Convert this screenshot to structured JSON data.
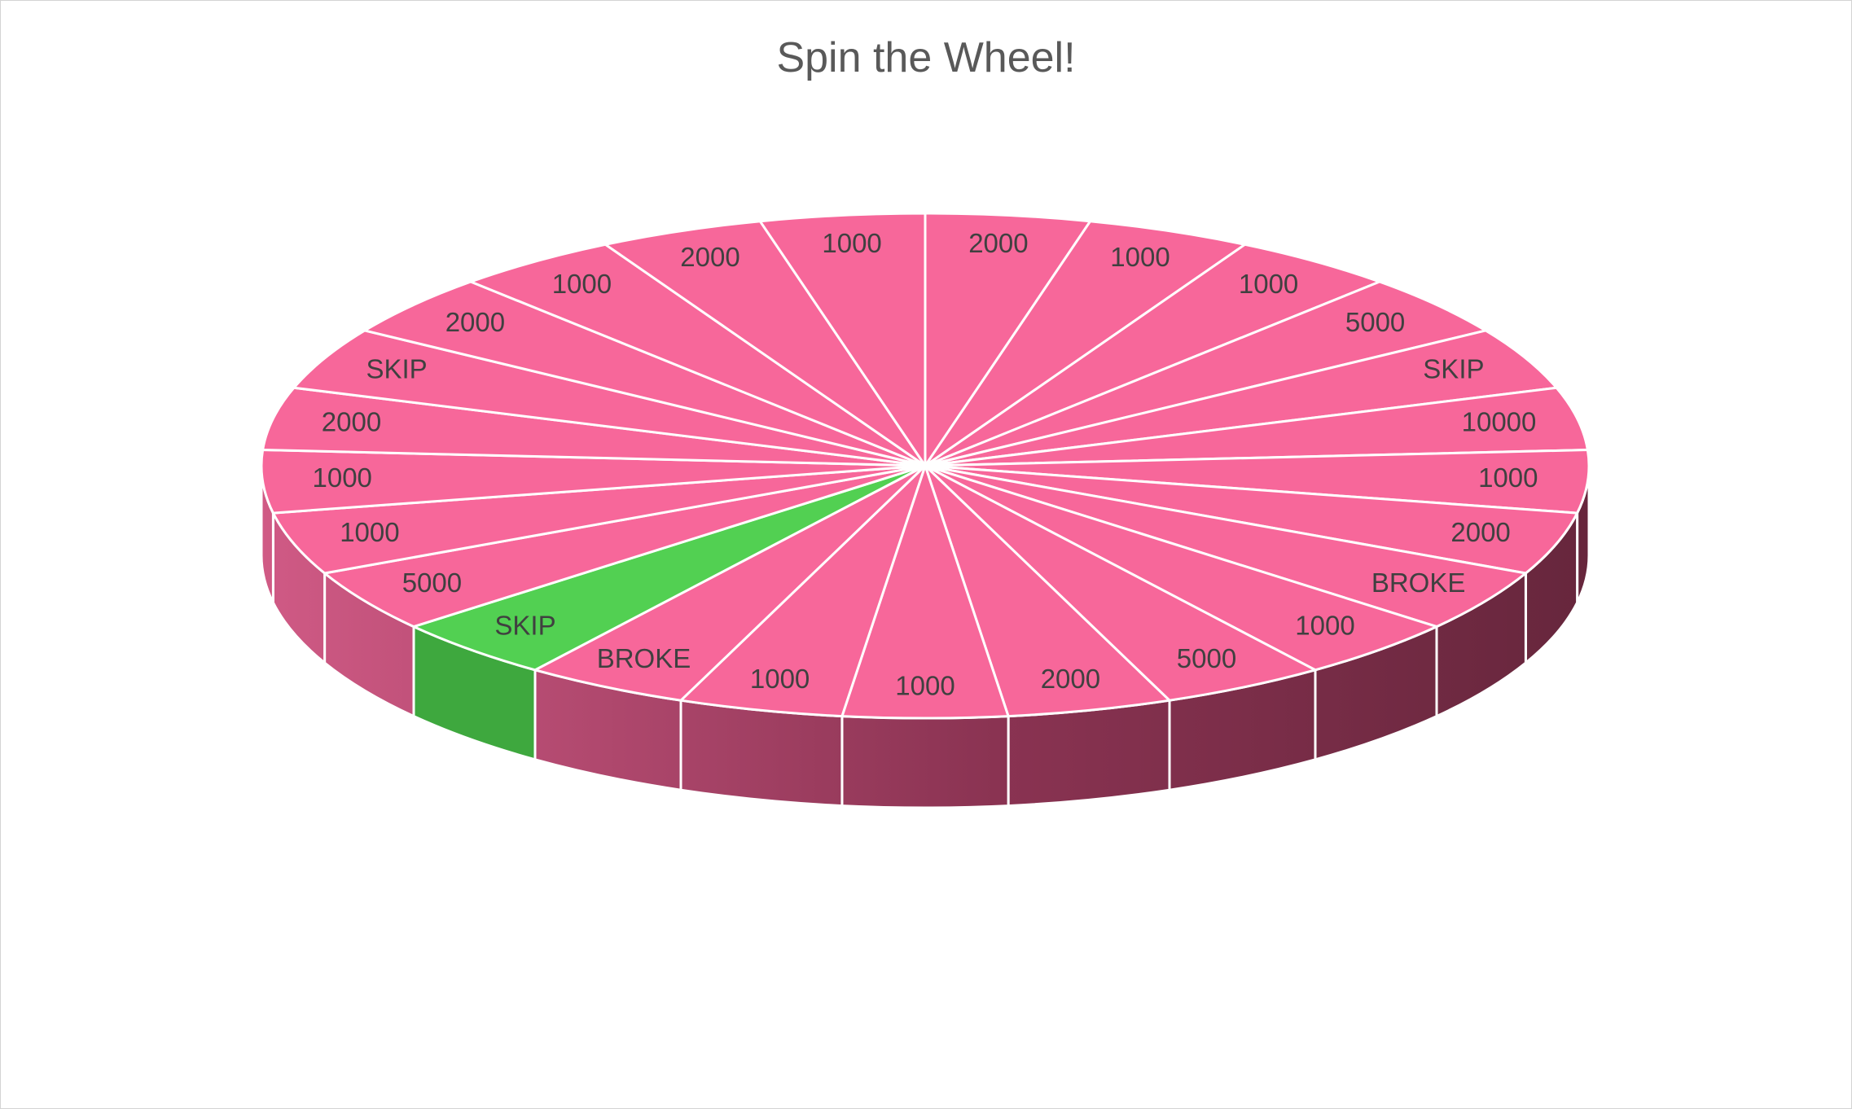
{
  "chart_data": {
    "type": "pie",
    "style": "3d",
    "title": "Spin the Wheel!",
    "categories": [
      "2000",
      "1000",
      "1000",
      "5000",
      "SKIP",
      "10000",
      "1000",
      "2000",
      "BROKE",
      "1000",
      "5000",
      "2000",
      "1000",
      "1000",
      "BROKE",
      "SKIP",
      "5000",
      "1000",
      "1000",
      "2000",
      "SKIP",
      "2000",
      "1000",
      "2000",
      "1000"
    ],
    "values": [
      1,
      1,
      1,
      1,
      1,
      1,
      1,
      1,
      1,
      1,
      1,
      1,
      1,
      1,
      1,
      1,
      1,
      1,
      1,
      1,
      1,
      1,
      1,
      1,
      1
    ],
    "highlighted_index": 15,
    "colors": {
      "slice": "#f7679a",
      "highlight": "#52d052",
      "side_highlight": "#3ea83e",
      "side_light": "#d05a85",
      "side_dark": "#66263c",
      "separator": "#ffffff"
    },
    "legend": "none"
  }
}
